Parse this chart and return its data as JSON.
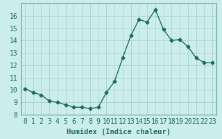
{
  "x": [
    0,
    1,
    2,
    3,
    4,
    5,
    6,
    7,
    8,
    9,
    10,
    11,
    12,
    13,
    14,
    15,
    16,
    17,
    18,
    19,
    20,
    21,
    22,
    23
  ],
  "y": [
    10.1,
    9.8,
    9.6,
    9.1,
    9.0,
    8.8,
    8.6,
    8.6,
    8.5,
    8.6,
    9.8,
    10.7,
    12.6,
    14.4,
    15.7,
    15.5,
    16.5,
    14.9,
    14.0,
    14.1,
    13.5,
    12.6,
    12.2,
    12.2
  ],
  "xlim": [
    -0.5,
    23.5
  ],
  "ylim": [
    8,
    17
  ],
  "yticks": [
    8,
    9,
    10,
    11,
    12,
    13,
    14,
    15,
    16
  ],
  "xticks": [
    0,
    1,
    2,
    3,
    4,
    5,
    6,
    7,
    8,
    9,
    10,
    11,
    12,
    13,
    14,
    15,
    16,
    17,
    18,
    19,
    20,
    21,
    22,
    23
  ],
  "xlabel": "Humidex (Indice chaleur)",
  "line_color": "#1a6b5a",
  "marker": "D",
  "marker_size": 2.5,
  "bg_color": "#cceee8",
  "grid_color": "#aad4cc",
  "label_fontsize": 7.5,
  "tick_fontsize": 7
}
